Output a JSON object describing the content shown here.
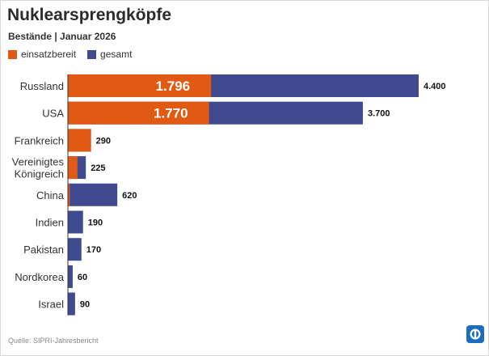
{
  "title": "Nuklearsprengköpfe",
  "subtitle": "Bestände | Januar 2026",
  "source": "Quelle: SIPRI-Jahresbericht",
  "colors": {
    "einsatzbereit": "#e05a14",
    "gesamt": "#3f4b8e",
    "axis": "#333333"
  },
  "legend": [
    {
      "label": "einsatzbereit",
      "color": "#e05a14"
    },
    {
      "label": "gesamt",
      "color": "#3f4b8e"
    }
  ],
  "chart_data": {
    "type": "bar",
    "orientation": "horizontal",
    "stacked_overlay": true,
    "title": "Nuklearsprengköpfe",
    "subtitle": "Bestände | Januar 2026",
    "categories": [
      "Russland",
      "USA",
      "Frankreich",
      "Vereinigtes Königreich",
      "China",
      "Indien",
      "Pakistan",
      "Nordkorea",
      "Israel"
    ],
    "category_lines": [
      [
        "Russland"
      ],
      [
        "USA"
      ],
      [
        "Frankreich"
      ],
      [
        "Vereinigtes",
        "Königreich"
      ],
      [
        "China"
      ],
      [
        "Indien"
      ],
      [
        "Pakistan"
      ],
      [
        "Nordkorea"
      ],
      [
        "Israel"
      ]
    ],
    "series": [
      {
        "name": "gesamt",
        "values": [
          4400,
          3700,
          290,
          225,
          620,
          190,
          170,
          60,
          90
        ]
      },
      {
        "name": "einsatzbereit",
        "values": [
          1796,
          1770,
          290,
          120,
          24,
          0,
          0,
          0,
          0
        ]
      }
    ],
    "value_labels": [
      "4.400",
      "3.700",
      "290",
      "225",
      "620",
      "190",
      "170",
      "60",
      "90"
    ],
    "inner_labels": [
      "1.796",
      "1.770",
      "",
      "",
      "",
      "",
      "",
      "",
      ""
    ],
    "xlim": [
      0,
      4400
    ],
    "grid": false,
    "legend_position": "top-left"
  }
}
